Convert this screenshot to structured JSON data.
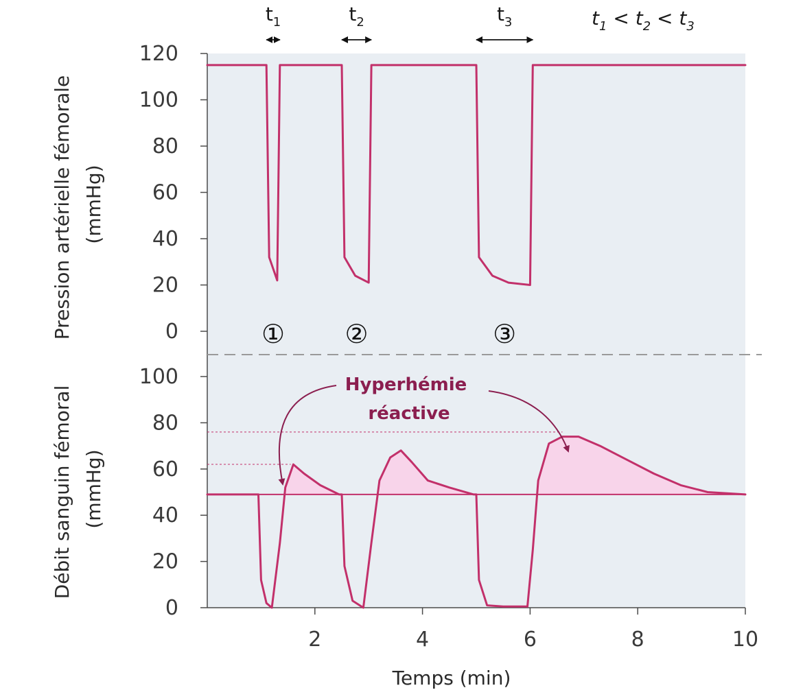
{
  "chart_data": [
    {
      "type": "line",
      "ylabel": "Pression artérielle fémorale (mmHg)",
      "ylabel_lines": [
        "Pression artérielle fémorale",
        "(mmHg)"
      ],
      "ylim": [
        0,
        120
      ],
      "yticks": [
        0,
        20,
        40,
        60,
        80,
        100,
        120
      ],
      "xlim": [
        0,
        10
      ],
      "x": [
        0,
        1.1,
        1.15,
        1.3,
        1.35,
        2.5,
        2.55,
        2.75,
        3.0,
        3.05,
        5.0,
        5.05,
        5.3,
        5.6,
        6.0,
        6.05,
        10
      ],
      "y": [
        115,
        115,
        32,
        22,
        115,
        115,
        32,
        24,
        21,
        115,
        115,
        32,
        24,
        21,
        20,
        115,
        115
      ],
      "occlusions": [
        {
          "label": "t1",
          "start": 1.1,
          "end": 1.35
        },
        {
          "label": "t2",
          "start": 2.5,
          "end": 3.05
        },
        {
          "label": "t3",
          "start": 5.0,
          "end": 6.05
        }
      ],
      "occlusion_labels": [
        {
          "letter": "t",
          "sub": "1"
        },
        {
          "letter": "t",
          "sub": "2"
        },
        {
          "letter": "t",
          "sub": "3"
        }
      ],
      "markers": [
        "①",
        "②",
        "③"
      ],
      "relation": {
        "parts": [
          "t",
          "1",
          " < ",
          "t",
          "2",
          " < ",
          "t",
          "3"
        ]
      }
    },
    {
      "type": "area",
      "ylabel": "Débit sanguin fémoral (mmHg)",
      "ylabel_lines": [
        "Débit sanguin fémoral",
        "(mmHg)"
      ],
      "ylim": [
        0,
        100
      ],
      "yticks": [
        0,
        20,
        40,
        60,
        80,
        100
      ],
      "xlabel": "Temps (min)",
      "xlim": [
        0,
        10
      ],
      "xticks": [
        2,
        4,
        6,
        8,
        10
      ],
      "baseline": 49,
      "x": [
        0,
        0.95,
        1.0,
        1.1,
        1.2,
        1.35,
        1.45,
        1.6,
        1.8,
        2.1,
        2.45,
        2.5,
        2.55,
        2.7,
        2.9,
        3.05,
        3.2,
        3.4,
        3.6,
        3.8,
        4.1,
        4.5,
        4.95,
        5.0,
        5.05,
        5.2,
        5.5,
        5.95,
        6.05,
        6.15,
        6.35,
        6.6,
        6.9,
        7.3,
        7.8,
        8.3,
        8.8,
        9.3,
        10
      ],
      "y": [
        49,
        49,
        12,
        2,
        0,
        28,
        52,
        62,
        58,
        53,
        49,
        49,
        18,
        3,
        0,
        28,
        55,
        65,
        68,
        63,
        55,
        52,
        49,
        49,
        12,
        1,
        0.5,
        0.5,
        25,
        55,
        71,
        74,
        74,
        70,
        64,
        58,
        53,
        50,
        49
      ],
      "peaks": [
        62,
        74
      ],
      "annotation": {
        "lines": [
          "Hyperhémie",
          "réactive"
        ]
      }
    }
  ],
  "colors": {
    "curve": "#c2306a",
    "fill": "#f8d4ea",
    "panel": "#e9eef3",
    "annotation": "#8b1e4f",
    "dash": "#9a9a9a"
  }
}
